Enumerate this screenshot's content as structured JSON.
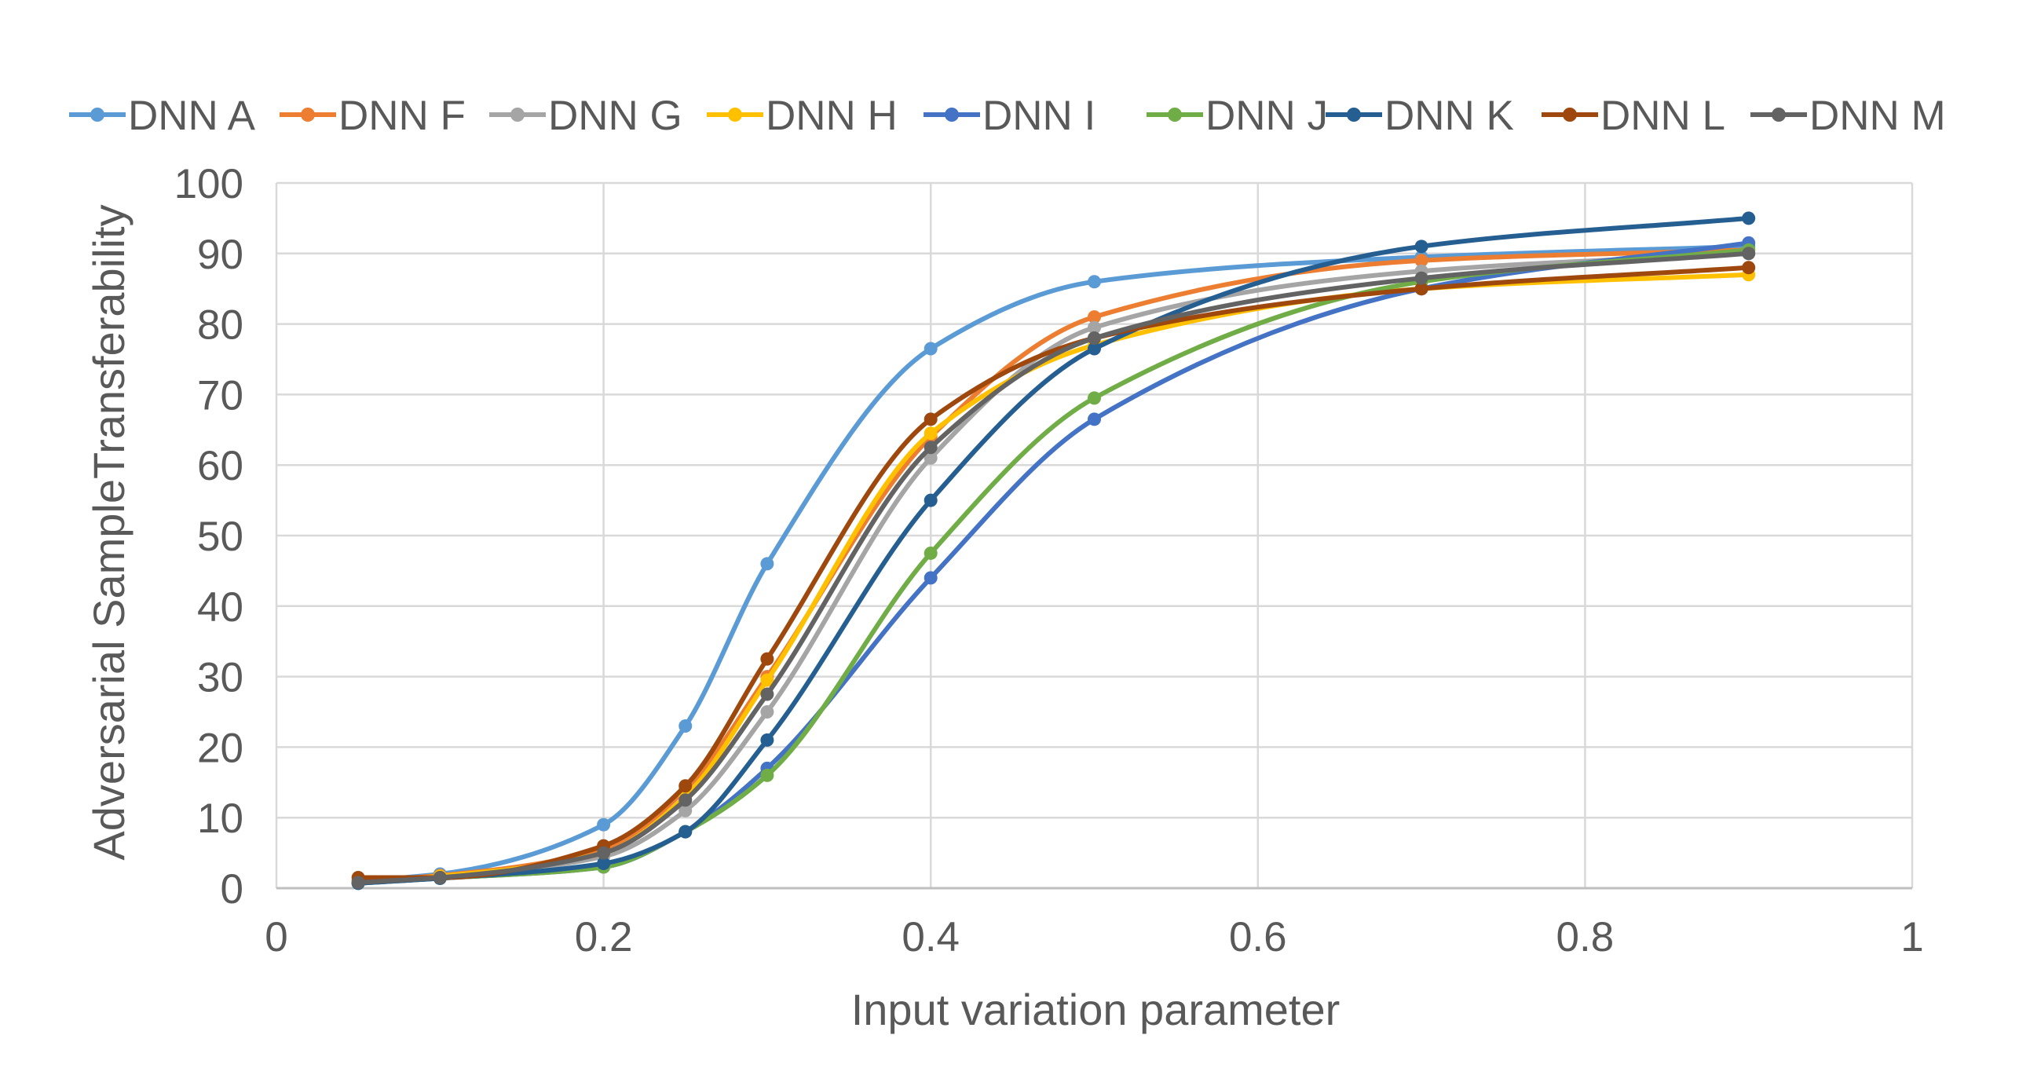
{
  "chart_data": {
    "type": "scatter",
    "mode": "smooth-lines-with-markers",
    "title": "",
    "xlabel": "Input variation parameter",
    "ylabel": "Adversarial SampleTransferability",
    "xlim": [
      0,
      1
    ],
    "ylim": [
      0,
      100
    ],
    "x_ticks": [
      "0",
      "0.2",
      "0.4",
      "0.6",
      "0.8",
      "1"
    ],
    "y_ticks": [
      "0",
      "10",
      "20",
      "30",
      "40",
      "50",
      "60",
      "70",
      "80",
      "90",
      "100"
    ],
    "grid": true,
    "legend_position": "top",
    "x": [
      0.05,
      0.1,
      0.2,
      0.25,
      0.3,
      0.4,
      0.5,
      0.7,
      0.9
    ],
    "series": [
      {
        "name": "DNN A",
        "color": "#5B9BD5",
        "values": [
          1.0,
          2.0,
          9.0,
          23.0,
          46.0,
          76.5,
          86.0,
          89.5,
          91.0
        ]
      },
      {
        "name": "DNN F",
        "color": "#ED7D31",
        "values": [
          1.0,
          1.8,
          5.5,
          14.0,
          30.0,
          64.0,
          81.0,
          89.0,
          90.5
        ]
      },
      {
        "name": "DNN G",
        "color": "#A5A5A5",
        "values": [
          0.8,
          1.6,
          4.5,
          11.0,
          25.0,
          61.0,
          79.5,
          87.5,
          90.0
        ]
      },
      {
        "name": "DNN H",
        "color": "#FFC000",
        "values": [
          0.9,
          1.7,
          5.0,
          13.0,
          29.5,
          64.5,
          77.0,
          85.0,
          87.0
        ]
      },
      {
        "name": "DNN I",
        "color": "#4472C4",
        "values": [
          0.7,
          1.4,
          3.0,
          8.0,
          17.0,
          44.0,
          66.5,
          85.0,
          91.5
        ]
      },
      {
        "name": "DNN J",
        "color": "#70AD47",
        "values": [
          0.7,
          1.4,
          3.0,
          8.0,
          16.0,
          47.5,
          69.5,
          86.0,
          90.5
        ]
      },
      {
        "name": "DNN K",
        "color": "#255E91",
        "values": [
          0.7,
          1.4,
          3.5,
          8.0,
          21.0,
          55.0,
          76.5,
          91.0,
          95.0
        ]
      },
      {
        "name": "DNN L",
        "color": "#9E480E",
        "values": [
          1.5,
          1.5,
          6.0,
          14.5,
          32.5,
          66.5,
          78.0,
          85.0,
          88.0
        ]
      },
      {
        "name": "DNN M",
        "color": "#636363",
        "values": [
          0.8,
          1.5,
          5.0,
          12.5,
          27.5,
          62.5,
          78.0,
          86.5,
          90.0
        ]
      }
    ]
  }
}
